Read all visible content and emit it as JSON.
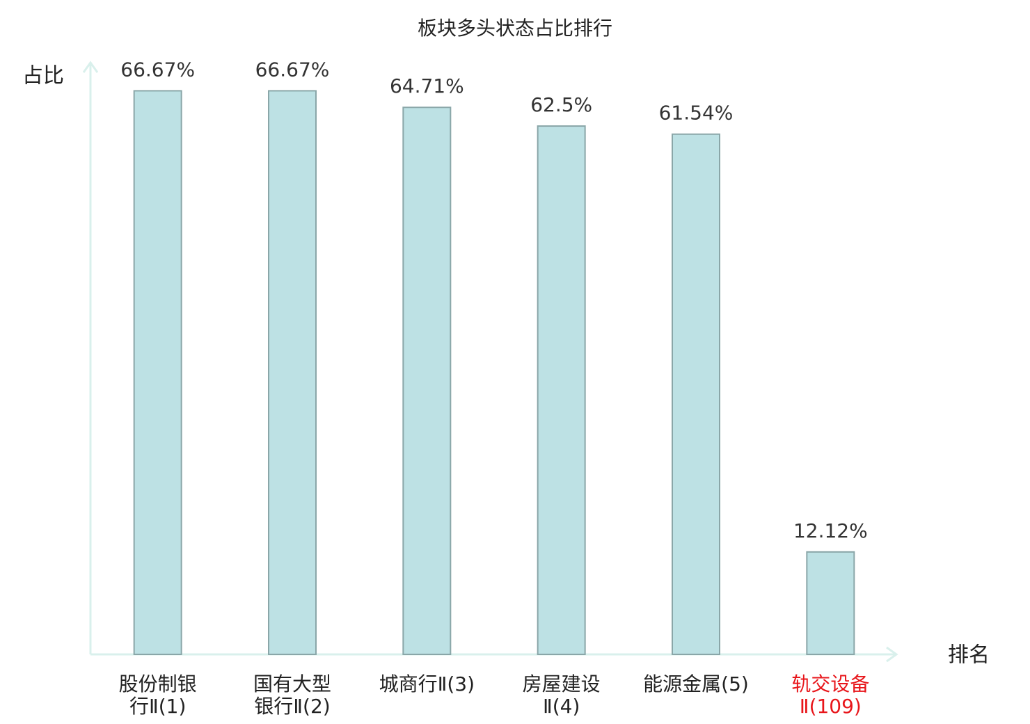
{
  "chart_data": {
    "type": "bar",
    "title": "板块多头状态占比排行",
    "y_label": "占比",
    "x_label": "排名",
    "categories": [
      "股份制银行Ⅱ(1)",
      "国有大型银行Ⅱ(2)",
      "城商行Ⅱ(3)",
      "房屋建设Ⅱ(4)",
      "能源金属(5)",
      "轨交设备Ⅱ(109)"
    ],
    "values": [
      66.67,
      66.67,
      64.71,
      62.5,
      61.54,
      12.12
    ],
    "value_labels": [
      "66.67%",
      "66.67%",
      "64.71%",
      "62.5%",
      "61.54%",
      "12.12%"
    ],
    "color": "#bde1e4",
    "edge_color": "#8aa6a8",
    "highlight_index": 5,
    "highlight_color": "#e8161b",
    "ylim": [
      0,
      70
    ]
  }
}
